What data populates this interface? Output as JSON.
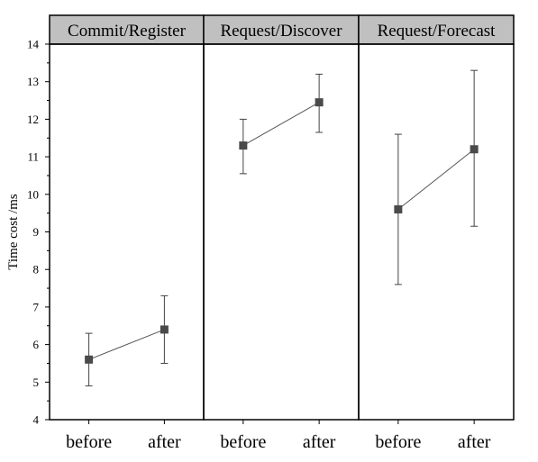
{
  "chart_data": {
    "type": "line",
    "ylabel": "Time cost /ms",
    "ylim": [
      4,
      14
    ],
    "yticks": [
      4,
      5,
      6,
      7,
      8,
      9,
      10,
      11,
      12,
      13,
      14
    ],
    "categories": [
      "before",
      "after"
    ],
    "grid": false,
    "panels": [
      {
        "title": "Commit/Register",
        "points": [
          {
            "x": "before",
            "y": 5.6,
            "y_low": 4.9,
            "y_high": 6.3
          },
          {
            "x": "after",
            "y": 6.4,
            "y_low": 5.5,
            "y_high": 7.3
          }
        ]
      },
      {
        "title": "Request/Discover",
        "points": [
          {
            "x": "before",
            "y": 11.3,
            "y_low": 10.55,
            "y_high": 12.0
          },
          {
            "x": "after",
            "y": 12.45,
            "y_low": 11.65,
            "y_high": 13.2
          }
        ]
      },
      {
        "title": "Request/Forecast",
        "points": [
          {
            "x": "before",
            "y": 9.6,
            "y_low": 7.6,
            "y_high": 11.6
          },
          {
            "x": "after",
            "y": 11.2,
            "y_low": 9.15,
            "y_high": 13.3
          }
        ]
      }
    ],
    "colors": {
      "marker": "#4a4a4a",
      "line": "#555555",
      "errorbar": "#444444",
      "header_fill": "#c0c0c0",
      "frame": "#000000"
    }
  }
}
